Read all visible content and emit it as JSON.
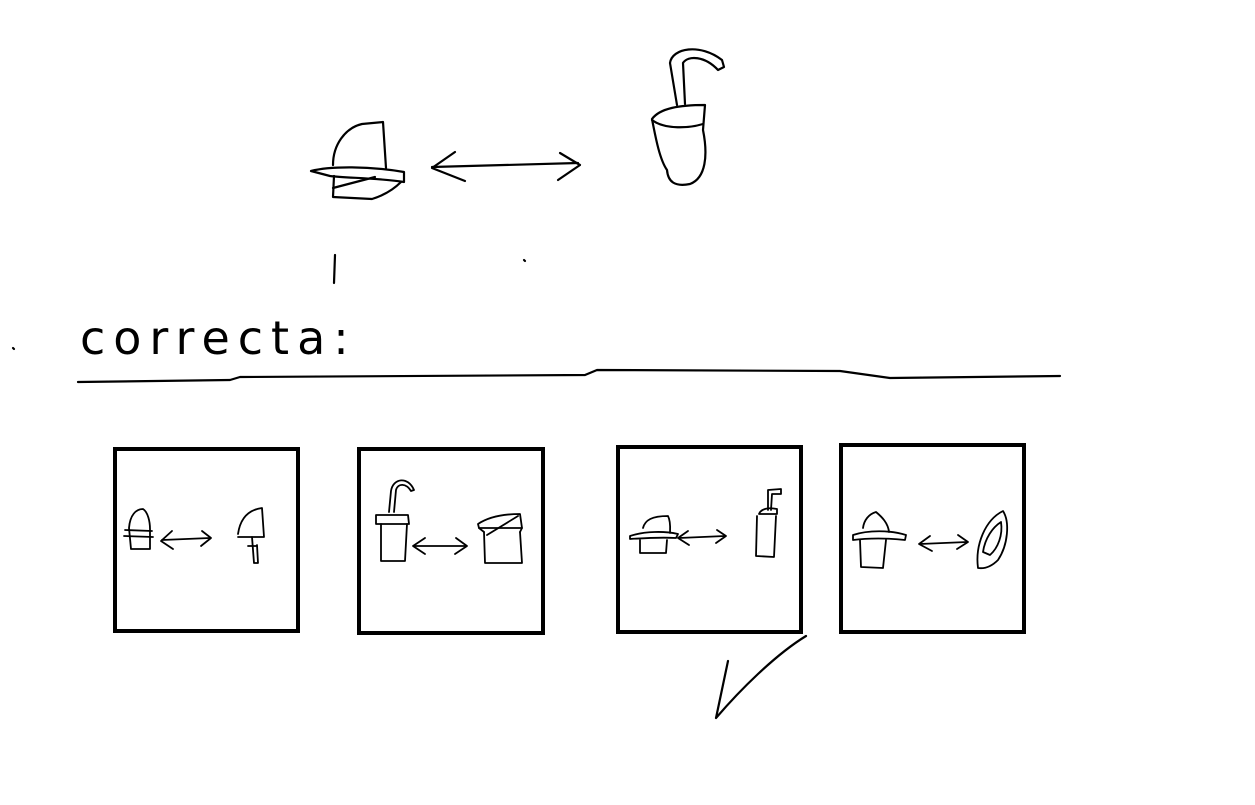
{
  "prompt": {
    "left_item": "hat-icon",
    "relation": "double-arrow-icon",
    "right_item": "faucet-jug-icon"
  },
  "answer_label": "correcta:",
  "options": [
    {
      "id": "option-1",
      "left": "hat-icon",
      "right": "faucet-icon",
      "selected": false
    },
    {
      "id": "option-2",
      "left": "faucet-jug-icon",
      "right": "pot-icon",
      "selected": false
    },
    {
      "id": "option-3",
      "left": "hat-icon",
      "right": "straw-cup-icon",
      "selected": true
    },
    {
      "id": "option-4",
      "left": "hat-icon",
      "right": "leaf-icon",
      "selected": false
    }
  ],
  "checkmark": "checkmark-icon",
  "colors": {
    "ink": "#000000",
    "background": "#ffffff"
  }
}
